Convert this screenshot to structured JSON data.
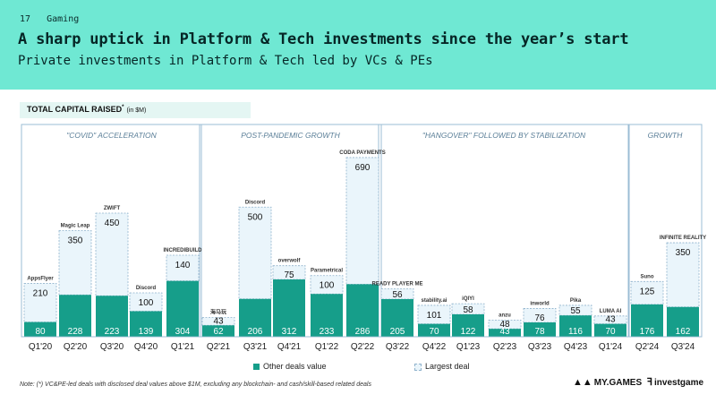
{
  "header": {
    "page_number": "17",
    "section": "Gaming",
    "title": "A sharp uptick in Platform & Tech investments since the year’s start",
    "subtitle": "Private investments in Platform & Tech led by VCs & PEs"
  },
  "chart_label": {
    "text": "TOTAL CAPITAL RAISED",
    "sup": "*",
    "unit": "(in $M)"
  },
  "chart_data": {
    "type": "bar",
    "stacked": true,
    "title": "TOTAL CAPITAL RAISED* (in $M)",
    "categories": [
      "Q1'20",
      "Q2'20",
      "Q3'20",
      "Q4'20",
      "Q1'21",
      "Q2'21",
      "Q3'21",
      "Q4'21",
      "Q1'22",
      "Q2'22",
      "Q3'22",
      "Q4'22",
      "Q1'23",
      "Q2'23",
      "Q3'23",
      "Q4'23",
      "Q1'24",
      "Q2'24",
      "Q3'24"
    ],
    "series": [
      {
        "name": "Other deals value",
        "values": [
          80,
          228,
          223,
          139,
          304,
          62,
          206,
          312,
          233,
          286,
          205,
          70,
          122,
          43,
          78,
          116,
          70,
          176,
          162
        ]
      },
      {
        "name": "Largest deal",
        "values": [
          210,
          350,
          450,
          100,
          140,
          43,
          500,
          75,
          100,
          690,
          56,
          101,
          58,
          48,
          76,
          55,
          43,
          125,
          350
        ]
      }
    ],
    "largest_deal_companies": [
      "AppsFlyer",
      "Magic Leap",
      "ZWIFT",
      "Discord",
      "INCREDIBUILD",
      "海马玩",
      "Discord",
      "overwolf",
      "Parametrical",
      "CODA PAYMENTS",
      "READY PLAYER ME",
      "stability.ai",
      "iQIYI",
      "anzu",
      "inworld",
      "Pika",
      "LUMA AI",
      "Suno",
      "INFINITE REALITY"
    ],
    "periods": [
      {
        "label": "\"COVID\" ACCELERATION",
        "start": 0,
        "end": 4
      },
      {
        "label": "POST-PANDEMIC GROWTH",
        "start": 5,
        "end": 9
      },
      {
        "label": "\"HANGOVER\" FOLLOWED BY STABILIZATION",
        "start": 10,
        "end": 16
      },
      {
        "label": "GROWTH",
        "start": 17,
        "end": 18
      }
    ],
    "legend_position": "bottom",
    "colors": {
      "other": "#169e8a",
      "largest": "#eaf5fb",
      "largest_border": "#8fb2cc",
      "period_border": "#9bbcd4"
    }
  },
  "footnote": "Note: (*) VC&PE-led deals with disclosed deal values above $1M, excluding any blockchain- and cash/skill-based related deals",
  "logos": {
    "mygames": "MY.GAMES",
    "investgame": "investgame"
  }
}
